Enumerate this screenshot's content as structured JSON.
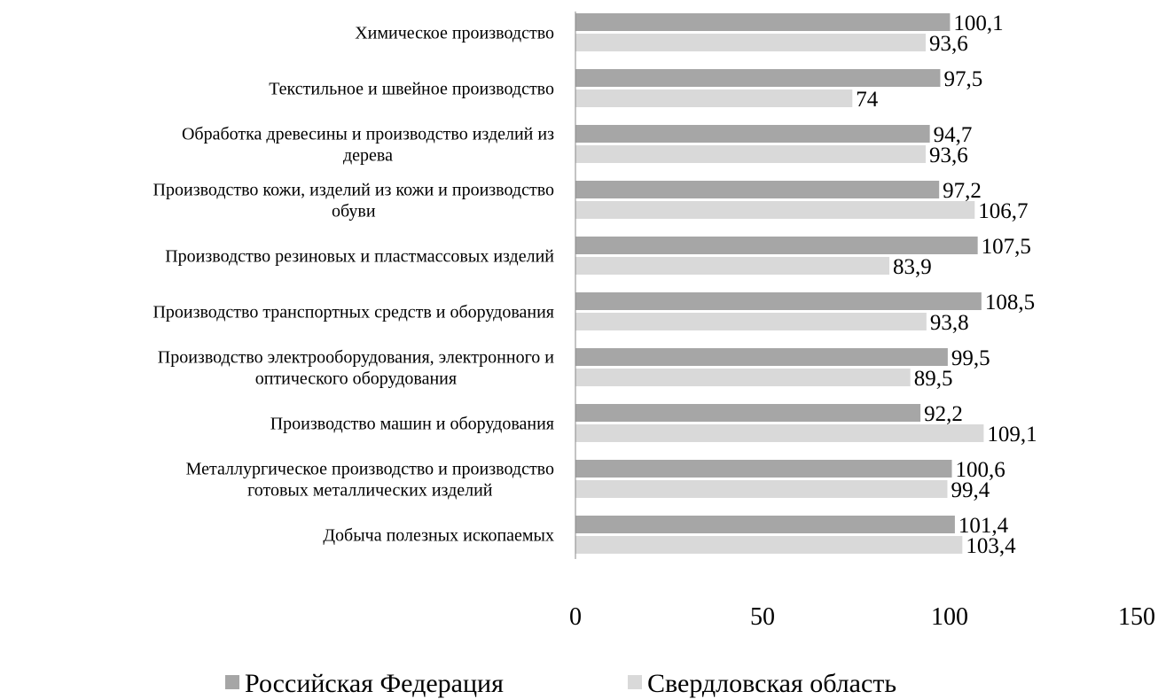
{
  "chart_data": {
    "type": "bar",
    "orientation": "horizontal",
    "categories": [
      [
        "Химическое производство"
      ],
      [
        "Текстильное и швейное производство"
      ],
      [
        "Обработка древесины и производство изделий из",
        "дерева"
      ],
      [
        "Производство кожи, изделий из кожи и производство",
        "обуви"
      ],
      [
        "Производство резиновых и пластмассовых изделий"
      ],
      [
        "Производство транспортных средств и оборудования"
      ],
      [
        "Производство электрооборудования, электронного и",
        "оптического оборудования"
      ],
      [
        "Производство машин и оборудования"
      ],
      [
        "Металлургическое производство и производство",
        "готовых металлических изделий"
      ],
      [
        "Добыча полезных ископаемых"
      ]
    ],
    "series": [
      {
        "name": "Российская Федерация",
        "color": "#a6a6a6",
        "values": [
          100.1,
          97.5,
          94.7,
          97.2,
          107.5,
          108.5,
          99.5,
          92.2,
          100.6,
          101.4
        ],
        "labels": [
          "100,1",
          "97,5",
          "94,7",
          "97,2",
          "107,5",
          "108,5",
          "99,5",
          "92,2",
          "100,6",
          "101,4"
        ]
      },
      {
        "name": "Свердловская область",
        "color": "#d9d9d9",
        "values": [
          93.6,
          74,
          93.6,
          106.7,
          83.9,
          93.8,
          89.5,
          109.1,
          99.4,
          103.4
        ],
        "labels": [
          "93,6",
          "74",
          "93,6",
          "106,7",
          "83,9",
          "93,8",
          "89,5",
          "109,1",
          "99,4",
          "103,4"
        ]
      }
    ],
    "xlim": [
      0,
      150
    ],
    "xticks": [
      "0",
      "50",
      "100",
      "150"
    ],
    "grid": false,
    "legend_position": "bottom"
  }
}
